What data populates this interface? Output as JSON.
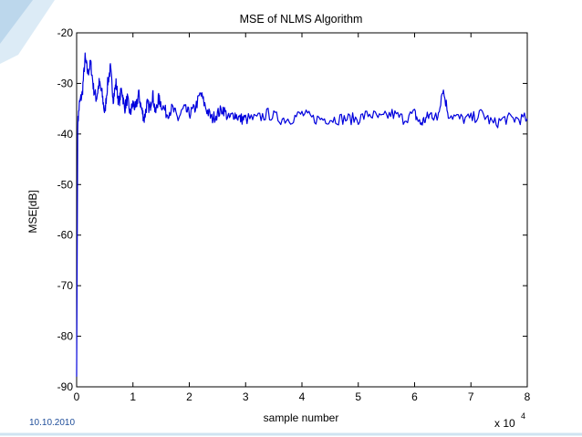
{
  "slide": {
    "date": "10.10.2010",
    "accent_color": "#cfe3f1"
  },
  "chart_data": {
    "type": "line",
    "title": "MSE of NLMS Algorithm",
    "xlabel": "sample number",
    "ylabel": "MSE[dB]",
    "x_multiplier": "x 10",
    "x_multiplier_exponent": "4",
    "xlim": [
      0,
      8
    ],
    "ylim": [
      -90,
      -20
    ],
    "x_ticks": [
      "0",
      "1",
      "2",
      "3",
      "4",
      "5",
      "6",
      "7",
      "8"
    ],
    "y_ticks": [
      "-20",
      "-30",
      "-40",
      "-50",
      "-60",
      "-70",
      "-80",
      "-90"
    ],
    "grid": false,
    "line_color": "#0000dd",
    "series": [
      {
        "x": [
          0,
          0.02,
          0.05,
          0.1,
          0.15,
          0.2,
          0.25,
          0.3,
          0.35,
          0.4,
          0.45,
          0.5,
          0.55,
          0.6,
          0.65,
          0.7,
          0.75,
          0.8,
          0.85,
          0.9,
          0.95,
          1.0,
          1.05,
          1.1,
          1.15,
          1.2,
          1.25,
          1.3,
          1.35,
          1.4,
          1.45,
          1.5,
          1.6,
          1.7,
          1.8,
          1.9,
          2.0,
          2.1,
          2.2,
          2.3,
          2.4,
          2.5,
          2.6,
          2.7,
          2.8,
          2.9,
          3.0,
          3.2,
          3.4,
          3.6,
          3.8,
          4.0,
          4.2,
          4.4,
          4.6,
          4.8,
          5.0,
          5.2,
          5.4,
          5.6,
          5.8,
          6.0,
          6.1,
          6.2,
          6.3,
          6.4,
          6.5,
          6.6,
          6.8,
          7.0,
          7.2,
          7.4,
          7.6,
          7.8,
          8.0
        ],
        "y": [
          -88,
          -38,
          -34,
          -32,
          -25,
          -28,
          -26,
          -31,
          -33,
          -30,
          -32,
          -36,
          -30,
          -27,
          -33,
          -30,
          -34,
          -31,
          -35,
          -33,
          -36,
          -34,
          -35,
          -32,
          -35,
          -37,
          -34,
          -35,
          -32,
          -36,
          -33,
          -34,
          -36,
          -35,
          -37,
          -35,
          -36,
          -35,
          -32,
          -35,
          -37,
          -36,
          -35,
          -37,
          -36,
          -37,
          -37,
          -37,
          -36,
          -37,
          -37,
          -36,
          -37,
          -37,
          -37,
          -37,
          -37,
          -36,
          -37,
          -36,
          -37,
          -36,
          -38,
          -37,
          -36,
          -37,
          -31,
          -36,
          -37,
          -37,
          -36,
          -38,
          -37,
          -37,
          -37
        ]
      }
    ]
  }
}
